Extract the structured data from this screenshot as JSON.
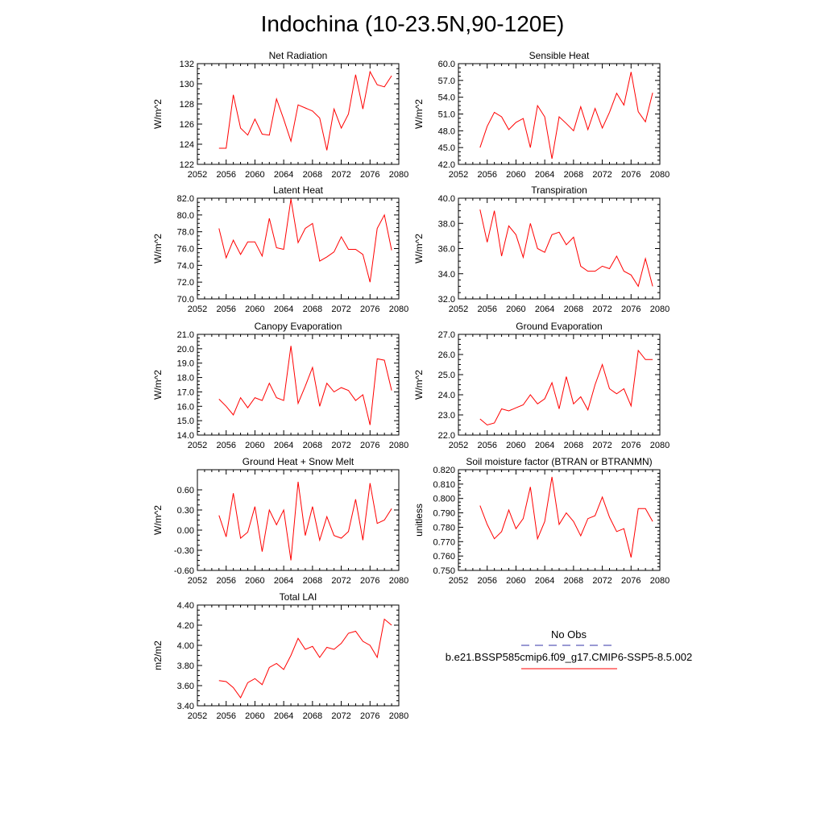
{
  "title": "Indochina (10-23.5N,90-120E)",
  "legend": {
    "entries": [
      {
        "label": "No Obs",
        "color": "#3333aa",
        "style": "dashed"
      },
      {
        "label": "b.e21.BSSP585cmip6.f09_g17.CMIP6-SSP5-8.5.002",
        "color": "#ff0000",
        "style": "solid"
      }
    ]
  },
  "chart_data": [
    {
      "type": "line",
      "title": "Net Radiation",
      "ylabel": "W/m^2",
      "xlim": [
        2052,
        2080
      ],
      "ylim": [
        122,
        132
      ],
      "xticks": [
        "2052",
        "2056",
        "2060",
        "2064",
        "2068",
        "2072",
        "2076",
        "2080"
      ],
      "yticks": [
        "122",
        "124",
        "126",
        "128",
        "130",
        "132"
      ],
      "series": [
        {
          "color": "#ff0000",
          "x": [
            2055,
            2056,
            2057,
            2058,
            2059,
            2060,
            2061,
            2062,
            2063,
            2064,
            2065,
            2066,
            2067,
            2068,
            2069,
            2070,
            2071,
            2072,
            2073,
            2074,
            2075,
            2076,
            2077,
            2078,
            2079
          ],
          "values": [
            123.6,
            123.6,
            128.9,
            125.6,
            124.9,
            126.5,
            125.0,
            124.9,
            128.5,
            126.5,
            124.3,
            127.9,
            127.6,
            127.3,
            126.6,
            123.4,
            127.5,
            125.6,
            127.0,
            130.9,
            127.5,
            131.2,
            129.9,
            129.7,
            130.8
          ]
        }
      ]
    },
    {
      "type": "line",
      "title": "Sensible Heat",
      "ylabel": "W/m^2",
      "xlim": [
        2052,
        2080
      ],
      "ylim": [
        42,
        60
      ],
      "xticks": [
        "2052",
        "2056",
        "2060",
        "2064",
        "2068",
        "2072",
        "2076",
        "2080"
      ],
      "yticks": [
        "42.0",
        "45.0",
        "48.0",
        "51.0",
        "54.0",
        "57.0",
        "60.0"
      ],
      "series": [
        {
          "color": "#ff0000",
          "x": [
            2055,
            2056,
            2057,
            2058,
            2059,
            2060,
            2061,
            2062,
            2063,
            2064,
            2065,
            2066,
            2067,
            2068,
            2069,
            2070,
            2071,
            2072,
            2073,
            2074,
            2075,
            2076,
            2077,
            2078,
            2079
          ],
          "values": [
            45.0,
            48.8,
            51.3,
            50.5,
            48.2,
            49.5,
            50.2,
            45.0,
            52.5,
            50.5,
            43.0,
            50.5,
            49.3,
            48.0,
            52.3,
            48.2,
            52.0,
            48.5,
            51.3,
            54.7,
            52.6,
            58.5,
            51.4,
            49.6,
            54.8
          ]
        }
      ]
    },
    {
      "type": "line",
      "title": "Latent Heat",
      "ylabel": "W/m^2",
      "xlim": [
        2052,
        2080
      ],
      "ylim": [
        70,
        82
      ],
      "xticks": [
        "2052",
        "2056",
        "2060",
        "2064",
        "2068",
        "2072",
        "2076",
        "2080"
      ],
      "yticks": [
        "70.0",
        "72.0",
        "74.0",
        "76.0",
        "78.0",
        "80.0",
        "82.0"
      ],
      "series": [
        {
          "color": "#ff0000",
          "x": [
            2055,
            2056,
            2057,
            2058,
            2059,
            2060,
            2061,
            2062,
            2063,
            2064,
            2065,
            2066,
            2067,
            2068,
            2069,
            2070,
            2071,
            2072,
            2073,
            2074,
            2075,
            2076,
            2077,
            2078,
            2079
          ],
          "values": [
            78.4,
            74.9,
            77.0,
            75.3,
            76.8,
            76.8,
            75.1,
            79.6,
            76.1,
            75.9,
            81.9,
            76.7,
            78.4,
            79.0,
            74.5,
            75.0,
            75.6,
            77.4,
            75.9,
            75.9,
            75.3,
            72.0,
            78.4,
            80.0,
            75.8
          ]
        }
      ]
    },
    {
      "type": "line",
      "title": "Transpiration",
      "ylabel": "W/m^2",
      "xlim": [
        2052,
        2080
      ],
      "ylim": [
        32,
        40
      ],
      "xticks": [
        "2052",
        "2056",
        "2060",
        "2064",
        "2068",
        "2072",
        "2076",
        "2080"
      ],
      "yticks": [
        "32.0",
        "34.0",
        "36.0",
        "38.0",
        "40.0"
      ],
      "series": [
        {
          "color": "#ff0000",
          "x": [
            2055,
            2056,
            2057,
            2058,
            2059,
            2060,
            2061,
            2062,
            2063,
            2064,
            2065,
            2066,
            2067,
            2068,
            2069,
            2070,
            2071,
            2072,
            2073,
            2074,
            2075,
            2076,
            2077,
            2078,
            2079
          ],
          "values": [
            39.1,
            36.5,
            39.0,
            35.4,
            37.8,
            37.1,
            35.3,
            38.0,
            36.0,
            35.7,
            37.1,
            37.3,
            36.3,
            36.9,
            34.6,
            34.2,
            34.2,
            34.6,
            34.4,
            35.4,
            34.2,
            33.9,
            33.0,
            35.2,
            33.0
          ]
        }
      ]
    },
    {
      "type": "line",
      "title": "Canopy Evaporation",
      "ylabel": "W/m^2",
      "xlim": [
        2052,
        2080
      ],
      "ylim": [
        14,
        21
      ],
      "xticks": [
        "2052",
        "2056",
        "2060",
        "2064",
        "2068",
        "2072",
        "2076",
        "2080"
      ],
      "yticks": [
        "14.0",
        "15.0",
        "16.0",
        "17.0",
        "18.0",
        "19.0",
        "20.0",
        "21.0"
      ],
      "series": [
        {
          "color": "#ff0000",
          "x": [
            2055,
            2056,
            2057,
            2058,
            2059,
            2060,
            2061,
            2062,
            2063,
            2064,
            2065,
            2066,
            2067,
            2068,
            2069,
            2070,
            2071,
            2072,
            2073,
            2074,
            2075,
            2076,
            2077,
            2078,
            2079
          ],
          "values": [
            16.5,
            16.0,
            15.4,
            16.6,
            15.9,
            16.6,
            16.4,
            17.6,
            16.6,
            16.4,
            20.2,
            16.2,
            17.4,
            18.7,
            16.0,
            17.6,
            17.0,
            17.3,
            17.1,
            16.4,
            16.8,
            14.7,
            19.3,
            19.2,
            17.1
          ]
        }
      ]
    },
    {
      "type": "line",
      "title": "Ground Evaporation",
      "ylabel": "W/m^2",
      "xlim": [
        2052,
        2080
      ],
      "ylim": [
        22,
        27
      ],
      "xticks": [
        "2052",
        "2056",
        "2060",
        "2064",
        "2068",
        "2072",
        "2076",
        "2080"
      ],
      "yticks": [
        "22.0",
        "23.0",
        "24.0",
        "25.0",
        "26.0",
        "27.0"
      ],
      "series": [
        {
          "color": "#ff0000",
          "x": [
            2055,
            2056,
            2057,
            2058,
            2059,
            2060,
            2061,
            2062,
            2063,
            2064,
            2065,
            2066,
            2067,
            2068,
            2069,
            2070,
            2071,
            2072,
            2073,
            2074,
            2075,
            2076,
            2077,
            2078,
            2079
          ],
          "values": [
            22.8,
            22.5,
            22.6,
            23.3,
            23.2,
            23.35,
            23.5,
            24.0,
            23.55,
            23.8,
            24.6,
            23.3,
            24.9,
            23.55,
            23.9,
            23.25,
            24.5,
            25.5,
            24.3,
            24.05,
            24.3,
            23.45,
            26.2,
            25.75,
            25.75
          ]
        }
      ]
    },
    {
      "type": "line",
      "title": "Ground Heat + Snow Melt",
      "ylabel": "W/m^2",
      "xlim": [
        2052,
        2080
      ],
      "ylim": [
        -0.6,
        0.9
      ],
      "xticks": [
        "2052",
        "2056",
        "2060",
        "2064",
        "2068",
        "2072",
        "2076",
        "2080"
      ],
      "yticks": [
        "-0.60",
        "-0.30",
        "0.00",
        "0.30",
        "0.60"
      ],
      "ytick_values": [
        -0.6,
        -0.3,
        0.0,
        0.3,
        0.6
      ],
      "series": [
        {
          "color": "#ff0000",
          "x": [
            2055,
            2056,
            2057,
            2058,
            2059,
            2060,
            2061,
            2062,
            2063,
            2064,
            2065,
            2066,
            2067,
            2068,
            2069,
            2070,
            2071,
            2072,
            2073,
            2074,
            2075,
            2076,
            2077,
            2078,
            2079
          ],
          "values": [
            0.22,
            -0.1,
            0.55,
            -0.12,
            -0.03,
            0.35,
            -0.32,
            0.3,
            0.08,
            0.3,
            -0.45,
            0.72,
            -0.08,
            0.35,
            -0.15,
            0.2,
            -0.08,
            -0.12,
            -0.02,
            0.46,
            -0.15,
            0.7,
            0.1,
            0.15,
            0.32
          ]
        }
      ]
    },
    {
      "type": "line",
      "title": "Soil moisture factor (BTRAN or BTRANMN)",
      "ylabel": "unitless",
      "xlim": [
        2052,
        2080
      ],
      "ylim": [
        0.75,
        0.82
      ],
      "xticks": [
        "2052",
        "2056",
        "2060",
        "2064",
        "2068",
        "2072",
        "2076",
        "2080"
      ],
      "yticks": [
        "0.750",
        "0.760",
        "0.770",
        "0.780",
        "0.790",
        "0.800",
        "0.810",
        "0.820"
      ],
      "series": [
        {
          "color": "#ff0000",
          "x": [
            2055,
            2056,
            2057,
            2058,
            2059,
            2060,
            2061,
            2062,
            2063,
            2064,
            2065,
            2066,
            2067,
            2068,
            2069,
            2070,
            2071,
            2072,
            2073,
            2074,
            2075,
            2076,
            2077,
            2078,
            2079
          ],
          "values": [
            0.795,
            0.782,
            0.772,
            0.777,
            0.792,
            0.779,
            0.786,
            0.808,
            0.772,
            0.784,
            0.815,
            0.782,
            0.79,
            0.784,
            0.774,
            0.786,
            0.788,
            0.801,
            0.787,
            0.777,
            0.779,
            0.759,
            0.793,
            0.793,
            0.784
          ]
        }
      ]
    },
    {
      "type": "line",
      "title": "Total LAI",
      "ylabel": "m2/m2",
      "xlim": [
        2052,
        2080
      ],
      "ylim": [
        3.4,
        4.4
      ],
      "xticks": [
        "2052",
        "2056",
        "2060",
        "2064",
        "2068",
        "2072",
        "2076",
        "2080"
      ],
      "yticks": [
        "3.40",
        "3.60",
        "3.80",
        "4.00",
        "4.20",
        "4.40"
      ],
      "series": [
        {
          "color": "#ff0000",
          "x": [
            2055,
            2056,
            2057,
            2058,
            2059,
            2060,
            2061,
            2062,
            2063,
            2064,
            2065,
            2066,
            2067,
            2068,
            2069,
            2070,
            2071,
            2072,
            2073,
            2074,
            2075,
            2076,
            2077,
            2078,
            2079
          ],
          "values": [
            3.65,
            3.64,
            3.58,
            3.48,
            3.63,
            3.67,
            3.61,
            3.78,
            3.82,
            3.76,
            3.9,
            4.07,
            3.96,
            3.99,
            3.88,
            3.98,
            3.96,
            4.02,
            4.12,
            4.14,
            4.04,
            4.0,
            3.88,
            4.26,
            4.2
          ]
        }
      ]
    }
  ]
}
